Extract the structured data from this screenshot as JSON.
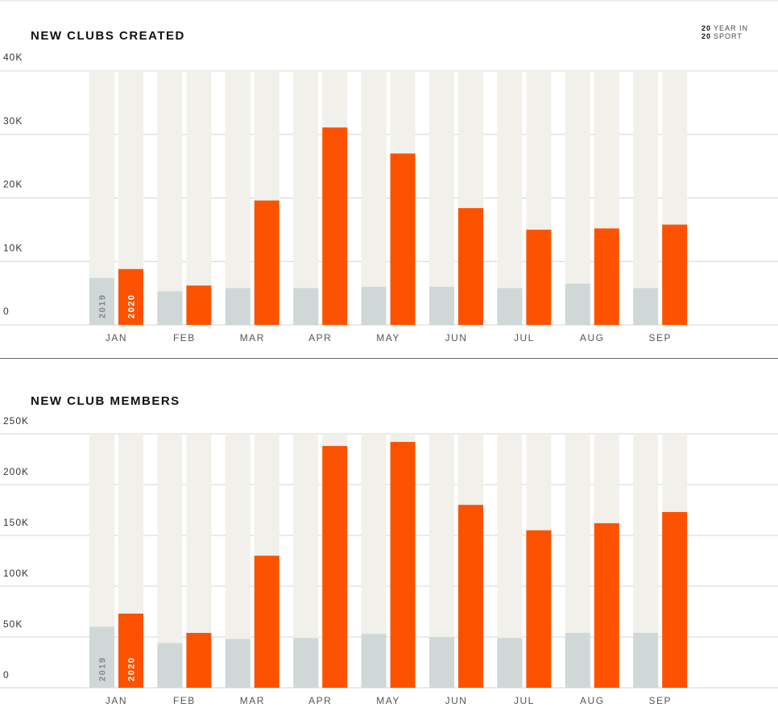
{
  "brand": {
    "line1_num": "20",
    "line1_text": "YEAR IN",
    "line2_num": "20",
    "line2_text": "SPORT"
  },
  "colors": {
    "bar_2019": "#cfd8d7",
    "bar_2020": "#fc5200",
    "track": "#f1f0ea",
    "grid": "#d4d4d4"
  },
  "chart_data": [
    {
      "type": "bar",
      "title": "NEW CLUBS CREATED",
      "xlabel": "",
      "ylabel": "",
      "categories": [
        "JAN",
        "FEB",
        "MAR",
        "APR",
        "MAY",
        "JUN",
        "JUL",
        "AUG",
        "SEP"
      ],
      "y_ticks": [
        "0",
        "10K",
        "20K",
        "30K",
        "40K"
      ],
      "y_tick_values": [
        0,
        10000,
        20000,
        30000,
        40000
      ],
      "ylim": [
        0,
        40000
      ],
      "series": [
        {
          "name": "2019",
          "values": [
            7400,
            5300,
            5800,
            5800,
            6000,
            6000,
            5800,
            6500,
            5800
          ]
        },
        {
          "name": "2020",
          "values": [
            8800,
            6200,
            19600,
            31100,
            27000,
            18400,
            15000,
            15200,
            15800
          ]
        }
      ],
      "grid": true,
      "legend": "inside first bar pair (rotated labels)"
    },
    {
      "type": "bar",
      "title": "NEW CLUB MEMBERS",
      "xlabel": "",
      "ylabel": "",
      "categories": [
        "JAN",
        "FEB",
        "MAR",
        "APR",
        "MAY",
        "JUN",
        "JUL",
        "AUG",
        "SEP"
      ],
      "y_ticks": [
        "0",
        "50K",
        "100K",
        "150K",
        "200K",
        "250K"
      ],
      "y_tick_values": [
        0,
        50000,
        100000,
        150000,
        200000,
        250000
      ],
      "ylim": [
        0,
        250000
      ],
      "series": [
        {
          "name": "2019",
          "values": [
            60000,
            44000,
            48000,
            49000,
            53000,
            50000,
            49000,
            54000,
            54000
          ]
        },
        {
          "name": "2020",
          "values": [
            73000,
            54000,
            130000,
            238000,
            242000,
            180000,
            155000,
            162000,
            173000
          ]
        }
      ],
      "grid": true,
      "legend": "inside first bar pair (rotated labels)"
    }
  ]
}
